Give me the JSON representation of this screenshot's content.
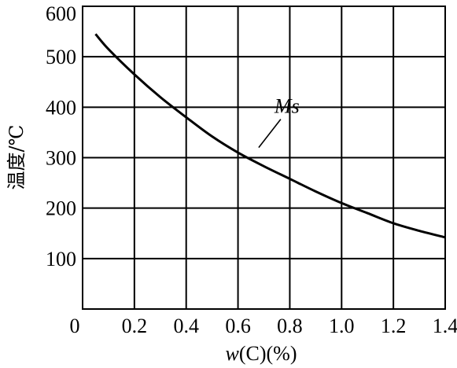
{
  "chart_data": {
    "type": "line",
    "title": "",
    "xlabel": {
      "italic_part": "w",
      "rest": "(C)(%)"
    },
    "ylabel": "温度/℃",
    "xlim": [
      0,
      1.4
    ],
    "ylim": [
      0,
      600
    ],
    "grid": true,
    "x_ticks": [
      {
        "value": 0,
        "label": "0"
      },
      {
        "value": 0.2,
        "label": "0.2"
      },
      {
        "value": 0.4,
        "label": "0.4"
      },
      {
        "value": 0.6,
        "label": "0.6"
      },
      {
        "value": 0.8,
        "label": "0.8"
      },
      {
        "value": 1.0,
        "label": "1.0"
      },
      {
        "value": 1.2,
        "label": "1.2"
      },
      {
        "value": 1.4,
        "label": "1.4"
      }
    ],
    "y_ticks": [
      {
        "value": 100,
        "label": "100"
      },
      {
        "value": 200,
        "label": "200"
      },
      {
        "value": 300,
        "label": "300"
      },
      {
        "value": 400,
        "label": "400"
      },
      {
        "value": 500,
        "label": "500"
      },
      {
        "value": 600,
        "label": "600"
      }
    ],
    "series": [
      {
        "x": [
          0.05,
          0.1,
          0.2,
          0.3,
          0.4,
          0.5,
          0.6,
          0.7,
          0.8,
          0.9,
          1.0,
          1.1,
          1.2,
          1.3,
          1.4
        ],
        "y": [
          545,
          515,
          465,
          420,
          380,
          342,
          310,
          283,
          258,
          233,
          210,
          190,
          170,
          155,
          142
        ]
      }
    ],
    "annotations": [
      {
        "text": "Ms",
        "x": 0.68,
        "y": 320
      }
    ]
  },
  "colors": {
    "line": "#000000",
    "grid": "#000000",
    "background": "#ffffff"
  }
}
